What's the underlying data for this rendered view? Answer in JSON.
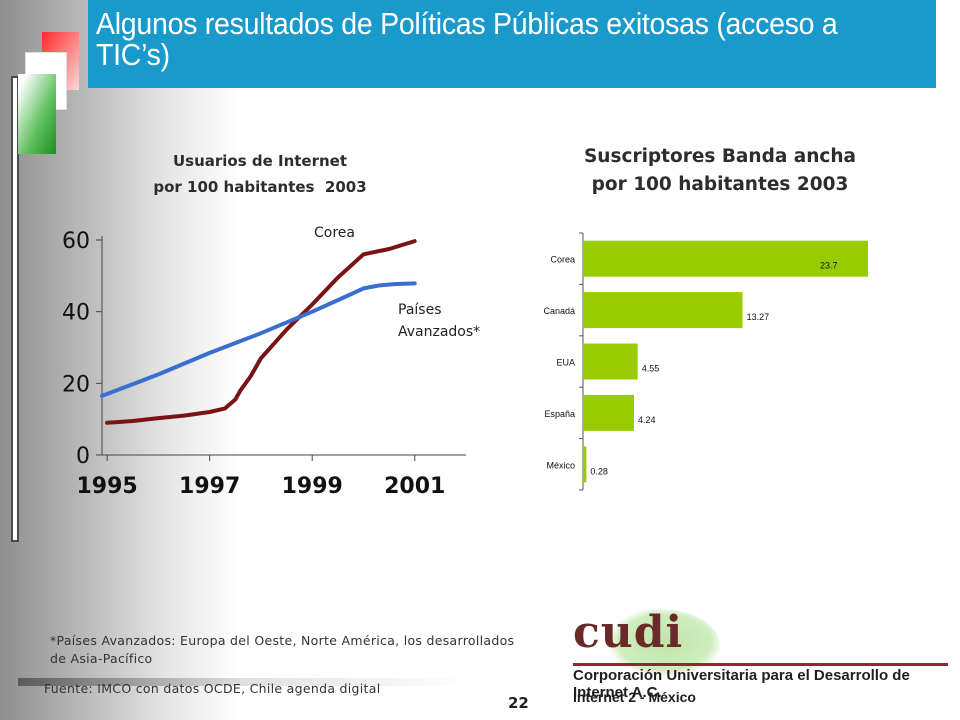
{
  "slide": {
    "title": "Algunos resultados de Políticas Públicas exitosas (acceso a TIC’s)",
    "page_number": "22",
    "footnote_line1": "*Países Avanzados: Europa del Oeste, Norte América, los desarrollados",
    "footnote_line2": "de Asia-Pacífico",
    "source": "Fuente: IMCO con datos OCDE, Chile agenda digital"
  },
  "logo": {
    "word": "cudi",
    "line1": "Corporación Universitaria para el Desarrollo de Internet A.C.",
    "line2": "Internet 2 - México"
  },
  "colors": {
    "title_bar": "#1a9acb",
    "corea_line": "#7a1414",
    "avanzados_line": "#3a6fd0",
    "bar_fill": "#99cc00"
  },
  "chart_data": [
    {
      "type": "line",
      "title_line1": "Usuarios de Internet",
      "title_line2": "por 100 habitantes  2003",
      "x_ticks": [
        "1995",
        "1997",
        "1999",
        "2001"
      ],
      "y_ticks": [
        "0",
        "20",
        "40",
        "60"
      ],
      "xlim": [
        1994.9,
        2002.0
      ],
      "ylim": [
        0,
        60
      ],
      "series": [
        {
          "name": "Corea",
          "x": [
            1995.0,
            1995.5,
            1996.0,
            1996.5,
            1997.0,
            1997.3,
            1997.5,
            1997.6,
            1997.8,
            1998.0,
            1998.5,
            1999.0,
            1999.5,
            2000.0,
            2000.5,
            2001.0
          ],
          "y": [
            9.0,
            9.5,
            10.3,
            11.0,
            12.0,
            13.0,
            15.5,
            18.0,
            22.0,
            27.0,
            35.0,
            42.0,
            49.5,
            56.0,
            57.5,
            59.7
          ]
        },
        {
          "name": "Países Avanzados*",
          "label_line1": "Países",
          "label_line2": "Avanzados*",
          "x": [
            1994.9,
            1996.0,
            1997.0,
            1998.0,
            1999.0,
            1999.7,
            2000.0,
            2000.3,
            2000.6,
            2001.0
          ],
          "y": [
            16.5,
            22.5,
            28.5,
            34.0,
            40.0,
            44.5,
            46.5,
            47.3,
            47.7,
            47.9
          ]
        }
      ]
    },
    {
      "type": "bar",
      "orientation": "horizontal",
      "title_line1": "Suscriptores Banda ancha",
      "title_line2": "por 100 habitantes 2003",
      "categories": [
        "Corea",
        "Canadá",
        "EUA",
        "España",
        "México"
      ],
      "values": [
        23.7,
        13.27,
        4.55,
        4.24,
        0.28
      ],
      "value_labels": [
        "23.7",
        "13.27",
        "4.55",
        "4.24",
        "0.28"
      ],
      "xlim": [
        0,
        23.7
      ]
    }
  ]
}
